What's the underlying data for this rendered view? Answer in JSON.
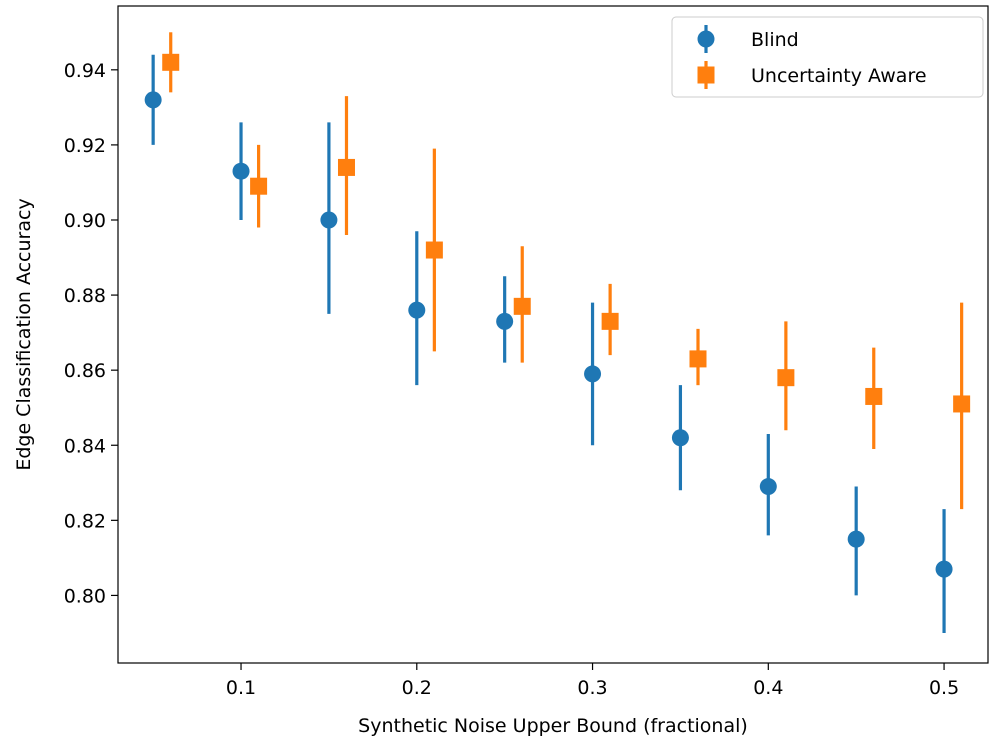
{
  "chart_data": {
    "type": "scatter",
    "xlabel": "Synthetic Noise Upper Bound (fractional)",
    "ylabel": "Edge Classification Accuracy",
    "xlim": [
      0.03,
      0.525
    ],
    "ylim": [
      0.782,
      0.957
    ],
    "x_ticks": [
      0.1,
      0.2,
      0.3,
      0.4,
      0.5
    ],
    "x_tick_labels": [
      "0.1",
      "0.2",
      "0.3",
      "0.4",
      "0.5"
    ],
    "y_ticks": [
      0.8,
      0.82,
      0.84,
      0.86,
      0.88,
      0.9,
      0.92,
      0.94
    ],
    "y_tick_labels": [
      "0.80",
      "0.82",
      "0.84",
      "0.86",
      "0.88",
      "0.90",
      "0.92",
      "0.94"
    ],
    "grid": false,
    "legend_position": "top-right",
    "series": [
      {
        "name": "Blind",
        "color": "#1f77b4",
        "marker": "circle",
        "points": [
          {
            "x": 0.05,
            "y": 0.932,
            "err_low": 0.92,
            "err_high": 0.944
          },
          {
            "x": 0.1,
            "y": 0.913,
            "err_low": 0.9,
            "err_high": 0.926
          },
          {
            "x": 0.15,
            "y": 0.9,
            "err_low": 0.875,
            "err_high": 0.926
          },
          {
            "x": 0.2,
            "y": 0.876,
            "err_low": 0.856,
            "err_high": 0.897
          },
          {
            "x": 0.25,
            "y": 0.873,
            "err_low": 0.862,
            "err_high": 0.885
          },
          {
            "x": 0.3,
            "y": 0.859,
            "err_low": 0.84,
            "err_high": 0.878
          },
          {
            "x": 0.35,
            "y": 0.842,
            "err_low": 0.828,
            "err_high": 0.856
          },
          {
            "x": 0.4,
            "y": 0.829,
            "err_low": 0.816,
            "err_high": 0.843
          },
          {
            "x": 0.45,
            "y": 0.815,
            "err_low": 0.8,
            "err_high": 0.829
          },
          {
            "x": 0.5,
            "y": 0.807,
            "err_low": 0.79,
            "err_high": 0.823
          }
        ]
      },
      {
        "name": "Uncertainty Aware",
        "color": "#ff7f0e",
        "marker": "square",
        "points": [
          {
            "x": 0.06,
            "y": 0.942,
            "err_low": 0.934,
            "err_high": 0.95
          },
          {
            "x": 0.11,
            "y": 0.909,
            "err_low": 0.898,
            "err_high": 0.92
          },
          {
            "x": 0.16,
            "y": 0.914,
            "err_low": 0.896,
            "err_high": 0.933
          },
          {
            "x": 0.21,
            "y": 0.892,
            "err_low": 0.865,
            "err_high": 0.919
          },
          {
            "x": 0.26,
            "y": 0.877,
            "err_low": 0.862,
            "err_high": 0.893
          },
          {
            "x": 0.31,
            "y": 0.873,
            "err_low": 0.864,
            "err_high": 0.883
          },
          {
            "x": 0.36,
            "y": 0.863,
            "err_low": 0.856,
            "err_high": 0.871
          },
          {
            "x": 0.41,
            "y": 0.858,
            "err_low": 0.844,
            "err_high": 0.873
          },
          {
            "x": 0.46,
            "y": 0.853,
            "err_low": 0.839,
            "err_high": 0.866
          },
          {
            "x": 0.51,
            "y": 0.851,
            "err_low": 0.823,
            "err_high": 0.878
          }
        ]
      }
    ]
  }
}
